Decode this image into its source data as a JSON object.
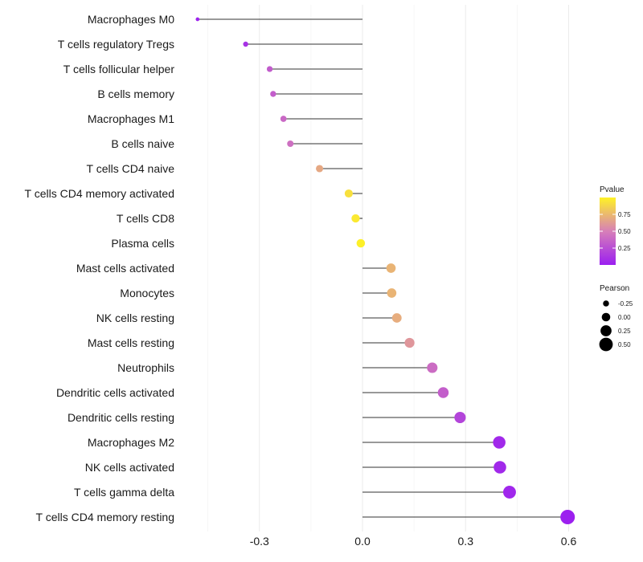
{
  "chart_data": {
    "type": "lollipop",
    "title": "",
    "xlabel": "",
    "ylabel": "",
    "xlim": [
      -0.48,
      0.64
    ],
    "xticks": [
      -0.3,
      0.0,
      0.3,
      0.6
    ],
    "xtick_labels": [
      "-0.3",
      "0.0",
      "0.3",
      "0.6"
    ],
    "categories": [
      "Macrophages M0",
      "T cells regulatory  Tregs",
      "T cells follicular helper",
      "B cells memory",
      "Macrophages M1",
      "B cells naive",
      "T cells CD4 naive",
      "T cells CD4 memory activated",
      "T cells CD8",
      "Plasma cells",
      "Mast cells activated",
      "Monocytes",
      "NK cells resting",
      "Mast cells resting",
      "Neutrophils",
      "Dendritic cells activated",
      "Dendritic cells resting",
      "Macrophages M2",
      "NK cells activated",
      "T cells gamma delta",
      "T cells CD4 memory resting"
    ],
    "values": [
      -0.48,
      -0.34,
      -0.27,
      -0.26,
      -0.23,
      -0.21,
      -0.125,
      -0.04,
      -0.02,
      -0.005,
      0.083,
      0.085,
      0.1,
      0.137,
      0.203,
      0.235,
      0.284,
      0.398,
      0.4,
      0.428,
      0.597
    ],
    "pvalues": [
      0.02,
      0.1,
      0.32,
      0.33,
      0.38,
      0.42,
      0.68,
      0.92,
      0.96,
      0.99,
      0.73,
      0.73,
      0.7,
      0.6,
      0.4,
      0.33,
      0.2,
      0.05,
      0.05,
      0.04,
      0.005
    ],
    "size_legend": {
      "title": "Pearson",
      "values": [
        -0.25,
        0.0,
        0.25,
        0.5
      ],
      "labels": [
        "-0.25",
        "0.00",
        "0.25",
        "0.50"
      ]
    },
    "color_legend": {
      "title": "Pvalue",
      "range": [
        0.0,
        1.0
      ],
      "ticks": [
        0.25,
        0.5,
        0.75
      ],
      "labels": [
        "0.25",
        "0.50",
        "0.75"
      ],
      "low_color": "#9b1ff0",
      "mid_color": "#d77fb8",
      "high_color": "#fef226"
    }
  }
}
